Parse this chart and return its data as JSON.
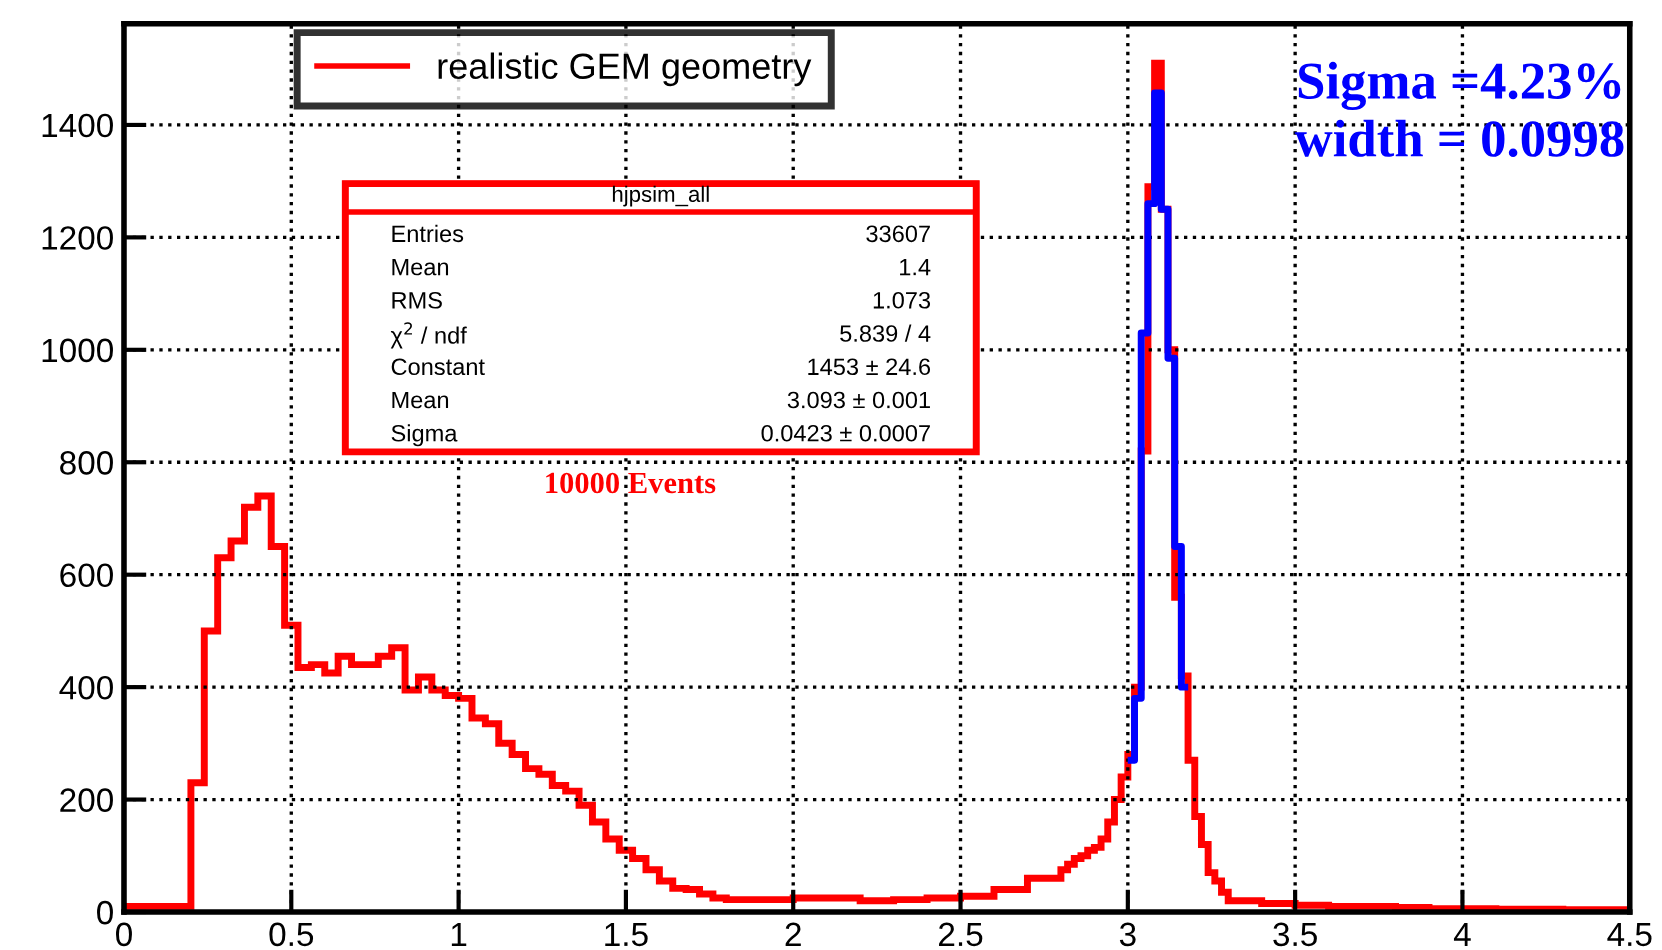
{
  "chart_data": {
    "type": "histogram",
    "series": [
      {
        "name": "realistic GEM geometry",
        "color": "#ff0000",
        "bins": [
          0,
          0.2,
          0.24,
          0.28,
          0.32,
          0.36,
          0.4,
          0.44,
          0.48,
          0.52,
          0.56,
          0.6,
          0.64,
          0.68,
          0.72,
          0.76,
          0.8,
          0.84,
          0.88,
          0.92,
          0.96,
          1.0,
          1.04,
          1.08,
          1.12,
          1.16,
          1.2,
          1.24,
          1.28,
          1.32,
          1.36,
          1.4,
          1.44,
          1.48,
          1.52,
          1.56,
          1.6,
          1.64,
          1.68,
          1.72,
          1.76,
          1.8,
          1.9,
          2.0,
          2.1,
          2.2,
          2.3,
          2.4,
          2.5,
          2.6,
          2.7,
          2.8,
          2.82,
          2.84,
          2.86,
          2.88,
          2.9,
          2.92,
          2.94,
          2.96,
          2.98,
          3.0,
          3.02,
          3.04,
          3.06,
          3.08,
          3.1,
          3.12,
          3.14,
          3.16,
          3.18,
          3.2,
          3.22,
          3.24,
          3.26,
          3.28,
          3.3,
          3.4,
          3.5,
          3.6,
          3.7,
          3.8,
          3.9,
          4.0,
          4.1,
          4.2,
          4.3,
          4.4,
          4.5
        ],
        "values": [
          10,
          230,
          500,
          630,
          660,
          720,
          740,
          650,
          510,
          435,
          440,
          425,
          455,
          440,
          440,
          455,
          470,
          395,
          418,
          395,
          385,
          380,
          345,
          335,
          300,
          280,
          255,
          245,
          225,
          215,
          190,
          160,
          130,
          110,
          95,
          75,
          55,
          42,
          40,
          32,
          25,
          22,
          22,
          25,
          25,
          20,
          22,
          25,
          28,
          40,
          60,
          75,
          85,
          95,
          100,
          110,
          115,
          130,
          160,
          200,
          240,
          280,
          400,
          820,
          1290,
          1510,
          1250,
          1000,
          560,
          420,
          270,
          170,
          120,
          70,
          55,
          35,
          20,
          15,
          12,
          10,
          10,
          8,
          6,
          6,
          5,
          5,
          4,
          4
        ]
      },
      {
        "type": "step",
        "color": "#0000ff",
        "x": [
          3.01,
          3.03,
          3.05,
          3.07,
          3.09,
          3.11,
          3.13,
          3.15,
          3.17
        ],
        "values": [
          270,
          380,
          1030,
          1260,
          1457,
          1250,
          985,
          650,
          400
        ]
      }
    ],
    "xlim": [
      0,
      4.5
    ],
    "ylim": [
      0,
      1580
    ],
    "xticks": [
      0,
      0.5,
      1,
      1.5,
      2,
      2.5,
      3,
      3.5,
      4,
      4.5
    ],
    "yticks": [
      0,
      200,
      400,
      600,
      800,
      1000,
      1200,
      1400
    ],
    "grid": true,
    "legend": "top left",
    "annotations": [
      "hjpsim_all",
      "Entries",
      "33607",
      "Mean",
      "1.4",
      "RMS",
      "1.073",
      "χ$^{2}$ / ndf",
      "5.839 / 4",
      "Constant",
      "1453 ± 24.6",
      "Mean",
      "3.093 ± 0.001",
      "Sigma",
      "0.0423 ± 0.0007",
      "10000 Events",
      "Sigma =4.23%",
      "width = 0.0998"
    ]
  }
}
